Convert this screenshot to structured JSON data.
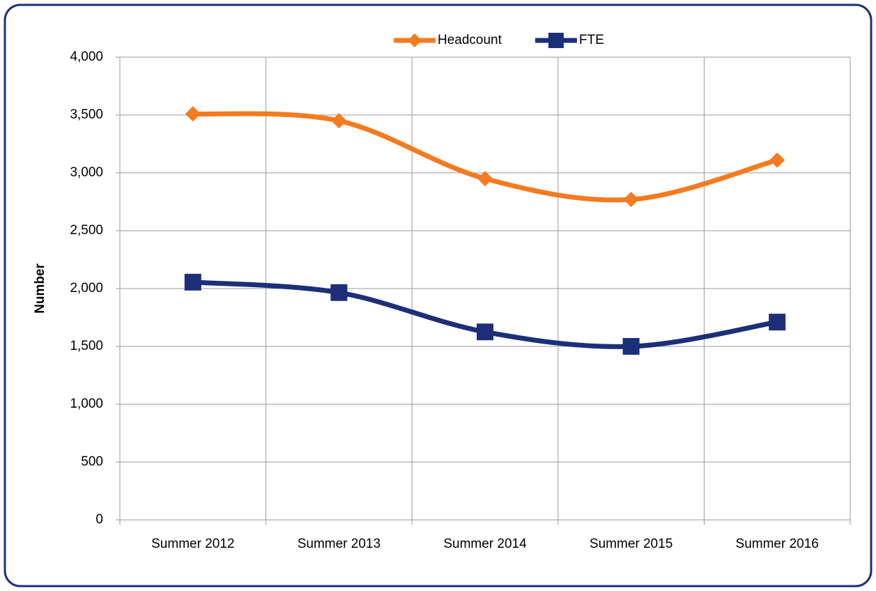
{
  "chart_data": {
    "type": "line",
    "categories": [
      "Summer 2012",
      "Summer 2013",
      "Summer 2014",
      "Summer 2015",
      "Summer 2016"
    ],
    "series": [
      {
        "name": "Headcount",
        "color": "#f47b20",
        "marker": "diamond",
        "values": [
          3510,
          3450,
          2950,
          2770,
          3110
        ]
      },
      {
        "name": "FTE",
        "color": "#1c2f78",
        "marker": "square",
        "values": [
          2055,
          1965,
          1625,
          1500,
          1710
        ]
      }
    ],
    "y_label": "Number",
    "ylim": [
      0,
      4000
    ],
    "yticks": [
      0,
      500,
      {
        "value": 1000,
        "label": "1,000"
      },
      {
        "value": 1500,
        "label": "1,500"
      },
      {
        "value": 2000,
        "label": "2,000"
      },
      {
        "value": 2500,
        "label": "2,500"
      },
      {
        "value": 3000,
        "label": "3,000"
      },
      {
        "value": 3500,
        "label": "3,500"
      },
      {
        "value": 4000,
        "label": "4,000"
      }
    ],
    "grid": true,
    "smooth": true,
    "legend": "top"
  }
}
